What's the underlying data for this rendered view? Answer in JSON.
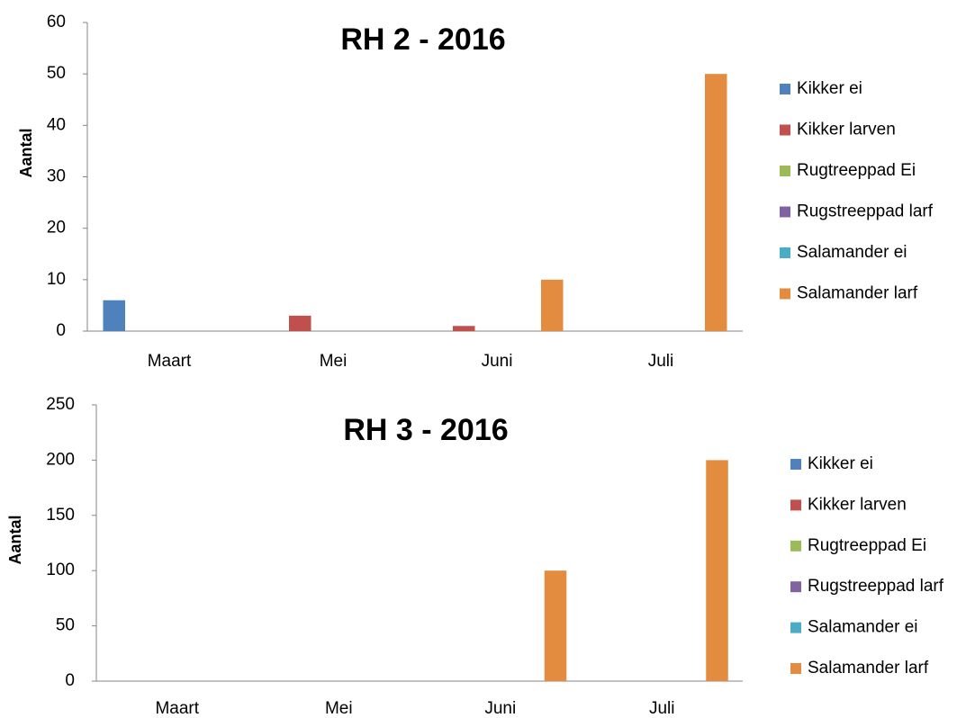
{
  "chart_data": [
    {
      "type": "bar",
      "title": "RH 2 - 2016",
      "y_label": "Aantal",
      "categories": [
        "Maart",
        "Mei",
        "Juni",
        "Juli"
      ],
      "series": [
        {
          "name": "Kikker ei",
          "color": "#4f81bd",
          "values": [
            6,
            0,
            0,
            0
          ]
        },
        {
          "name": "Kikker larven",
          "color": "#c0504d",
          "values": [
            0,
            3,
            1,
            0
          ]
        },
        {
          "name": "Rugtreeppad Ei",
          "color": "#9bbb59",
          "values": [
            0,
            0,
            0,
            0
          ]
        },
        {
          "name": "Rugstreeppad larf",
          "color": "#8064a2",
          "values": [
            0,
            0,
            0,
            0
          ]
        },
        {
          "name": "Salamander ei",
          "color": "#4bacc6",
          "values": [
            0,
            0,
            0,
            0
          ]
        },
        {
          "name": "Salamander larf",
          "color": "#e38b3e",
          "values": [
            0,
            0,
            10,
            50
          ]
        }
      ],
      "ylim": [
        0,
        60
      ],
      "yticks": [
        0,
        10,
        20,
        30,
        40,
        50,
        60
      ],
      "legend": "right",
      "grid": false
    },
    {
      "type": "bar",
      "title": "RH 3 - 2016",
      "y_label": "Aantal",
      "categories": [
        "Maart",
        "Mei",
        "Juni",
        "Juli"
      ],
      "series": [
        {
          "name": "Kikker ei",
          "color": "#4f81bd",
          "values": [
            0,
            0,
            0,
            0
          ]
        },
        {
          "name": "Kikker larven",
          "color": "#c0504d",
          "values": [
            0,
            0,
            0,
            0
          ]
        },
        {
          "name": "Rugtreeppad Ei",
          "color": "#9bbb59",
          "values": [
            0,
            0,
            0,
            0
          ]
        },
        {
          "name": "Rugstreeppad larf",
          "color": "#8064a2",
          "values": [
            0,
            0,
            0,
            0
          ]
        },
        {
          "name": "Salamander ei",
          "color": "#4bacc6",
          "values": [
            0,
            0,
            0,
            0
          ]
        },
        {
          "name": "Salamander larf",
          "color": "#e38b3e",
          "values": [
            0,
            0,
            100,
            200
          ]
        }
      ],
      "ylim": [
        0,
        250
      ],
      "yticks": [
        0,
        50,
        100,
        150,
        200,
        250
      ],
      "legend": "right",
      "grid": false
    }
  ]
}
